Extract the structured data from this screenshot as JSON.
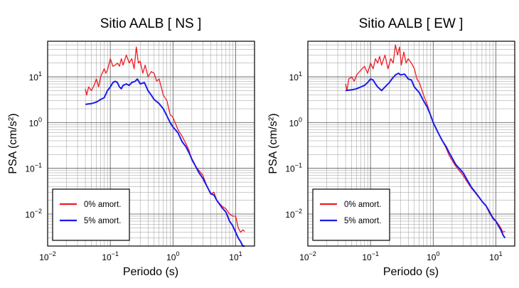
{
  "chart_data": [
    {
      "type": "line",
      "title": "Sitio AALB [ NS ]",
      "xlabel": "Periodo (s)",
      "ylabel": "PSA (cm/s²)",
      "xscale": "log",
      "yscale": "log",
      "xlim": [
        0.01,
        20
      ],
      "ylim": [
        0.002,
        60
      ],
      "grid": true,
      "legend_position": "bottom-left",
      "x_ticks": [
        {
          "value": 0.01,
          "base": "10",
          "exp": "−2"
        },
        {
          "value": 0.1,
          "base": "10",
          "exp": "−1"
        },
        {
          "value": 1,
          "base": "10",
          "exp": "0"
        },
        {
          "value": 10,
          "base": "10",
          "exp": "1"
        }
      ],
      "y_ticks": [
        {
          "value": 0.01,
          "base": "10",
          "exp": "−2"
        },
        {
          "value": 0.1,
          "base": "10",
          "exp": "−1"
        },
        {
          "value": 1,
          "base": "10",
          "exp": "0"
        },
        {
          "value": 10,
          "base": "10",
          "exp": "1"
        }
      ],
      "series": [
        {
          "name": "0% amort.",
          "color": "#ee1c25",
          "points": [
            [
              0.04,
              5.5
            ],
            [
              0.042,
              4.0
            ],
            [
              0.045,
              6.0
            ],
            [
              0.05,
              5.0
            ],
            [
              0.055,
              6.5
            ],
            [
              0.06,
              9.0
            ],
            [
              0.065,
              6.0
            ],
            [
              0.07,
              10.0
            ],
            [
              0.08,
              15.0
            ],
            [
              0.085,
              12.0
            ],
            [
              0.09,
              14.0
            ],
            [
              0.1,
              25.0
            ],
            [
              0.11,
              17.0
            ],
            [
              0.12,
              18.0
            ],
            [
              0.13,
              20.0
            ],
            [
              0.14,
              17.0
            ],
            [
              0.15,
              25.0
            ],
            [
              0.16,
              18.0
            ],
            [
              0.18,
              30.0
            ],
            [
              0.2,
              20.0
            ],
            [
              0.22,
              25.0
            ],
            [
              0.24,
              15.0
            ],
            [
              0.26,
              45.0
            ],
            [
              0.28,
              20.0
            ],
            [
              0.3,
              22.0
            ],
            [
              0.33,
              12.0
            ],
            [
              0.36,
              18.0
            ],
            [
              0.4,
              10.0
            ],
            [
              0.45,
              13.0
            ],
            [
              0.5,
              12.0
            ],
            [
              0.55,
              8.0
            ],
            [
              0.6,
              9.0
            ],
            [
              0.7,
              4.0
            ],
            [
              0.8,
              3.0
            ],
            [
              0.9,
              1.5
            ],
            [
              1.0,
              1.3
            ],
            [
              1.2,
              0.7
            ],
            [
              1.4,
              0.5
            ],
            [
              1.6,
              0.35
            ],
            [
              1.8,
              0.25
            ],
            [
              2.0,
              0.15
            ],
            [
              2.3,
              0.11
            ],
            [
              2.6,
              0.09
            ],
            [
              3.0,
              0.07
            ],
            [
              3.5,
              0.04
            ],
            [
              4.0,
              0.027
            ],
            [
              4.5,
              0.03
            ],
            [
              5.0,
              0.02
            ],
            [
              6.0,
              0.015
            ],
            [
              7.0,
              0.013
            ],
            [
              8.0,
              0.01
            ],
            [
              9.0,
              0.009
            ],
            [
              10.0,
              0.009
            ],
            [
              11.0,
              0.005
            ],
            [
              12.0,
              0.004
            ],
            [
              13.0,
              0.0045
            ],
            [
              14.0,
              0.0042
            ]
          ]
        },
        {
          "name": "5% amort.",
          "color": "#1a1aee",
          "points": [
            [
              0.04,
              2.5
            ],
            [
              0.05,
              2.6
            ],
            [
              0.06,
              2.8
            ],
            [
              0.07,
              3.2
            ],
            [
              0.08,
              3.5
            ],
            [
              0.09,
              5.0
            ],
            [
              0.1,
              6.0
            ],
            [
              0.11,
              7.5
            ],
            [
              0.12,
              8.0
            ],
            [
              0.13,
              7.5
            ],
            [
              0.14,
              6.0
            ],
            [
              0.15,
              5.5
            ],
            [
              0.16,
              6.5
            ],
            [
              0.18,
              7.0
            ],
            [
              0.2,
              6.5
            ],
            [
              0.22,
              7.5
            ],
            [
              0.25,
              8.0
            ],
            [
              0.27,
              9.0
            ],
            [
              0.3,
              7.0
            ],
            [
              0.35,
              7.5
            ],
            [
              0.4,
              5.0
            ],
            [
              0.45,
              4.0
            ],
            [
              0.5,
              3.2
            ],
            [
              0.6,
              2.6
            ],
            [
              0.7,
              2.0
            ],
            [
              0.8,
              1.4
            ],
            [
              0.9,
              1.0
            ],
            [
              1.0,
              0.8
            ],
            [
              1.2,
              0.6
            ],
            [
              1.4,
              0.38
            ],
            [
              1.6,
              0.3
            ],
            [
              1.8,
              0.22
            ],
            [
              2.0,
              0.16
            ],
            [
              2.3,
              0.11
            ],
            [
              2.6,
              0.08
            ],
            [
              3.0,
              0.06
            ],
            [
              3.5,
              0.04
            ],
            [
              4.0,
              0.028
            ],
            [
              4.5,
              0.026
            ],
            [
              5.0,
              0.02
            ],
            [
              6.0,
              0.014
            ],
            [
              7.0,
              0.011
            ],
            [
              8.0,
              0.007
            ],
            [
              9.0,
              0.0055
            ],
            [
              10.0,
              0.004
            ],
            [
              11.0,
              0.003
            ],
            [
              12.0,
              0.0025
            ],
            [
              13.0,
              0.002
            ],
            [
              14.0,
              0.002
            ]
          ]
        }
      ]
    },
    {
      "type": "line",
      "title": "Sitio AALB [ EW ]",
      "xlabel": "Periodo (s)",
      "ylabel": "PSA (cm/s²)",
      "xscale": "log",
      "yscale": "log",
      "xlim": [
        0.01,
        20
      ],
      "ylim": [
        0.002,
        60
      ],
      "grid": true,
      "legend_position": "bottom-left",
      "x_ticks": [
        {
          "value": 0.01,
          "base": "10",
          "exp": "−2"
        },
        {
          "value": 0.1,
          "base": "10",
          "exp": "−1"
        },
        {
          "value": 1,
          "base": "10",
          "exp": "0"
        },
        {
          "value": 10,
          "base": "10",
          "exp": "1"
        }
      ],
      "y_ticks": [
        {
          "value": 0.01,
          "base": "10",
          "exp": "−2"
        },
        {
          "value": 0.1,
          "base": "10",
          "exp": "−1"
        },
        {
          "value": 1,
          "base": "10",
          "exp": "0"
        },
        {
          "value": 10,
          "base": "10",
          "exp": "1"
        }
      ],
      "series": [
        {
          "name": "0% amort.",
          "color": "#ee1c25",
          "points": [
            [
              0.04,
              7.0
            ],
            [
              0.042,
              5.0
            ],
            [
              0.045,
              9.0
            ],
            [
              0.05,
              10.0
            ],
            [
              0.055,
              8.0
            ],
            [
              0.06,
              11.0
            ],
            [
              0.07,
              14.0
            ],
            [
              0.08,
              17.0
            ],
            [
              0.09,
              12.0
            ],
            [
              0.1,
              20.0
            ],
            [
              0.11,
              15.0
            ],
            [
              0.12,
              25.0
            ],
            [
              0.13,
              20.0
            ],
            [
              0.14,
              28.0
            ],
            [
              0.15,
              18.0
            ],
            [
              0.17,
              30.0
            ],
            [
              0.19,
              15.0
            ],
            [
              0.21,
              25.0
            ],
            [
              0.23,
              20.0
            ],
            [
              0.25,
              50.0
            ],
            [
              0.27,
              30.0
            ],
            [
              0.29,
              45.0
            ],
            [
              0.31,
              18.0
            ],
            [
              0.34,
              35.0
            ],
            [
              0.37,
              20.0
            ],
            [
              0.4,
              25.0
            ],
            [
              0.45,
              20.0
            ],
            [
              0.5,
              15.0
            ],
            [
              0.55,
              9.0
            ],
            [
              0.6,
              7.5
            ],
            [
              0.7,
              4.0
            ],
            [
              0.8,
              2.5
            ],
            [
              0.9,
              1.5
            ],
            [
              1.0,
              1.0
            ],
            [
              1.2,
              0.6
            ],
            [
              1.4,
              0.4
            ],
            [
              1.6,
              0.28
            ],
            [
              1.8,
              0.19
            ],
            [
              2.0,
              0.15
            ],
            [
              2.3,
              0.11
            ],
            [
              2.6,
              0.09
            ],
            [
              3.0,
              0.07
            ],
            [
              3.5,
              0.05
            ],
            [
              4.0,
              0.038
            ],
            [
              5.0,
              0.026
            ],
            [
              6.0,
              0.019
            ],
            [
              7.0,
              0.015
            ],
            [
              8.0,
              0.01
            ],
            [
              9.0,
              0.0085
            ],
            [
              10.0,
              0.007
            ],
            [
              11.0,
              0.006
            ],
            [
              12.0,
              0.005
            ],
            [
              13.0,
              0.004
            ],
            [
              14.0,
              0.0042
            ]
          ]
        },
        {
          "name": "5% amort.",
          "color": "#1a1aee",
          "points": [
            [
              0.04,
              5.0
            ],
            [
              0.05,
              5.2
            ],
            [
              0.06,
              5.5
            ],
            [
              0.07,
              6.0
            ],
            [
              0.08,
              6.5
            ],
            [
              0.09,
              7.5
            ],
            [
              0.1,
              9.0
            ],
            [
              0.11,
              8.5
            ],
            [
              0.12,
              7.0
            ],
            [
              0.13,
              6.0
            ],
            [
              0.14,
              5.5
            ],
            [
              0.15,
              5.0
            ],
            [
              0.16,
              5.5
            ],
            [
              0.18,
              6.5
            ],
            [
              0.2,
              7.5
            ],
            [
              0.22,
              9.0
            ],
            [
              0.25,
              11.0
            ],
            [
              0.28,
              12.0
            ],
            [
              0.3,
              11.0
            ],
            [
              0.35,
              11.5
            ],
            [
              0.4,
              9.0
            ],
            [
              0.45,
              8.5
            ],
            [
              0.5,
              6.0
            ],
            [
              0.6,
              4.5
            ],
            [
              0.7,
              3.0
            ],
            [
              0.8,
              2.2
            ],
            [
              0.9,
              1.5
            ],
            [
              1.0,
              1.0
            ],
            [
              1.2,
              0.6
            ],
            [
              1.4,
              0.4
            ],
            [
              1.6,
              0.3
            ],
            [
              1.8,
              0.22
            ],
            [
              2.0,
              0.17
            ],
            [
              2.3,
              0.12
            ],
            [
              2.6,
              0.1
            ],
            [
              3.0,
              0.08
            ],
            [
              3.5,
              0.055
            ],
            [
              4.0,
              0.04
            ],
            [
              5.0,
              0.027
            ],
            [
              6.0,
              0.019
            ],
            [
              7.0,
              0.015
            ],
            [
              8.0,
              0.011
            ],
            [
              9.0,
              0.008
            ],
            [
              10.0,
              0.007
            ],
            [
              11.0,
              0.0055
            ],
            [
              12.0,
              0.0045
            ],
            [
              13.0,
              0.0035
            ],
            [
              14.0,
              0.003
            ]
          ]
        }
      ]
    }
  ]
}
